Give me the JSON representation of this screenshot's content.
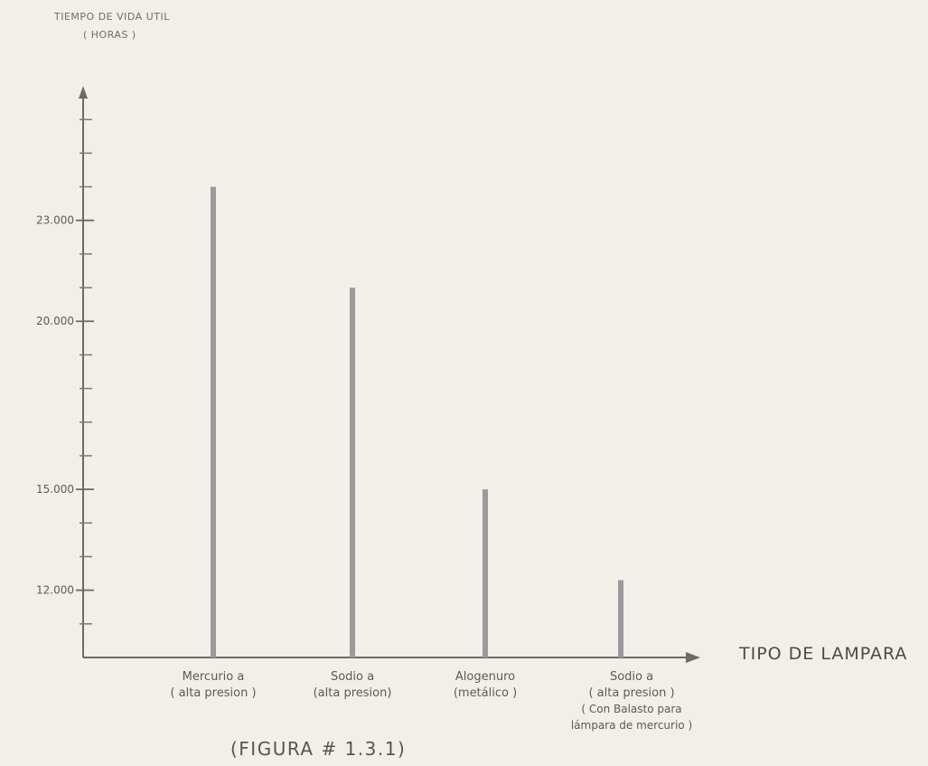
{
  "caption": "(FIGURA # 1.3.1)",
  "chart_data": {
    "type": "bar",
    "title": "",
    "ylabel_lines": [
      "TIEMPO DE VIDA UTIL",
      "( HORAS )"
    ],
    "xlabel": "TIPO DE LAMPARA",
    "ylim": [
      10000,
      27000
    ],
    "y_ticks": [
      {
        "value": 12000,
        "label": "12.000"
      },
      {
        "value": 15000,
        "label": "15.000"
      },
      {
        "value": 20000,
        "label": "20.000"
      },
      {
        "value": 23000,
        "label": "23.000"
      }
    ],
    "categories": [
      {
        "lines": [
          "Mercurio a",
          "( alta presion )"
        ]
      },
      {
        "lines": [
          "Sodio a",
          "(alta presion)"
        ]
      },
      {
        "lines": [
          "Alogenuro",
          "(metálico )"
        ]
      },
      {
        "lines": [
          "Sodio a",
          "( alta presion )",
          "( Con Balasto para",
          "lámpara de mercurio )"
        ]
      }
    ],
    "values": [
      24000,
      21000,
      15000,
      12300
    ],
    "grid": false,
    "colors": {
      "bar": "#9a9a9a",
      "axis": "#6a6a6a",
      "text": "#5a5a5a"
    }
  }
}
